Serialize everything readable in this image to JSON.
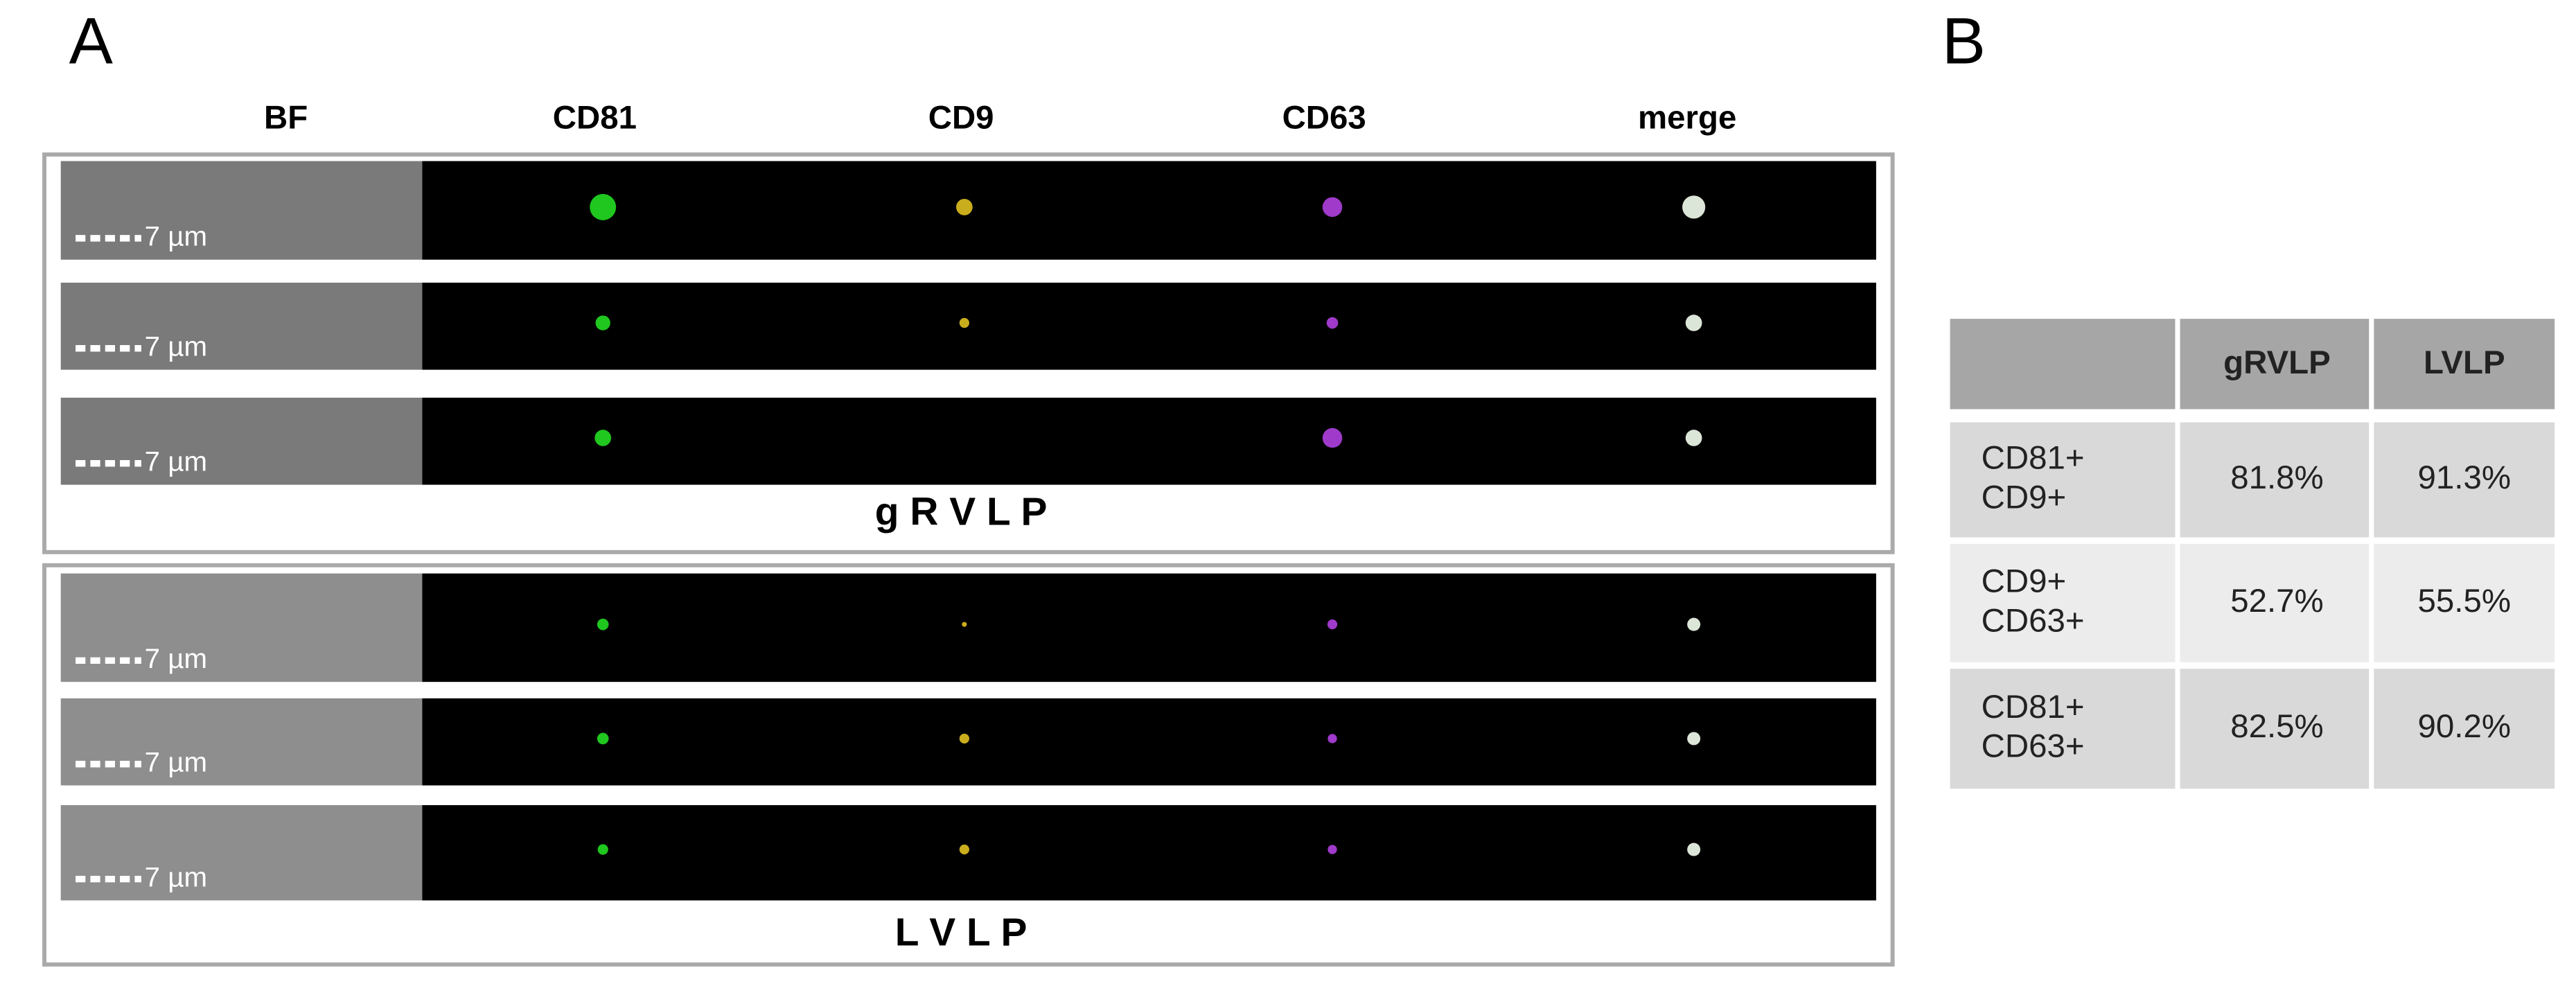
{
  "panel_a": {
    "label": "A",
    "columns": [
      "BF",
      "CD81",
      "CD9",
      "CD63",
      "merge"
    ],
    "groups": [
      {
        "label": "g R V L P",
        "rows": [
          {
            "scale_bar": "7 µm"
          },
          {
            "scale_bar": "7 µm"
          },
          {
            "scale_bar": "7 µm"
          }
        ]
      },
      {
        "label": "L V L P",
        "rows": [
          {
            "scale_bar": "7 µm"
          },
          {
            "scale_bar": "7 µm"
          },
          {
            "scale_bar": "7 µm"
          }
        ]
      }
    ]
  },
  "panel_b": {
    "label": "B",
    "table": {
      "header": [
        "gRVLP",
        "LVLP"
      ],
      "rows": [
        {
          "label": [
            "CD81+",
            "CD9+"
          ],
          "values": [
            "81.8%",
            "91.3%"
          ]
        },
        {
          "label": [
            "CD9+",
            "CD63+"
          ],
          "values": [
            "52.7%",
            "55.5%"
          ]
        },
        {
          "label": [
            "CD81+",
            "CD63+"
          ],
          "values": [
            "82.5%",
            "90.2%"
          ]
        }
      ]
    }
  }
}
